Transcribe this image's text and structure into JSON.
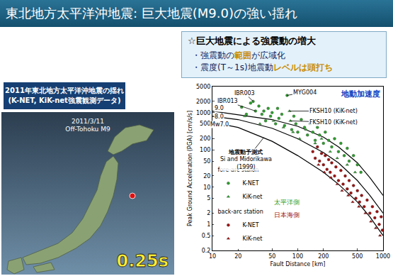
{
  "slide": {
    "title": "東北地方太平洋沖地震: 巨大地震(M9.0)の強い揺れ",
    "box": {
      "heading": "☆巨大地震による強震動の増大",
      "lines": [
        [
          {
            "text": "・強震動の"
          },
          {
            "text": "範囲",
            "highlight": true
          },
          {
            "text": "が広域化"
          }
        ],
        [
          {
            "text": "・震度(T～1s)地震動"
          },
          {
            "text": "レベルは頭打ち",
            "highlight": true
          }
        ]
      ]
    },
    "map": {
      "caption": [
        "2011年東北地方太平洋沖地震の揺れ",
        "(K-NET, KiK-net強震観測データ)"
      ],
      "date": "2011/3/11",
      "event": "Off-Tohoku M9",
      "time": "0.25s"
    }
  },
  "chart_data": {
    "type": "scatter",
    "title": "地動加速度",
    "x_label": "Fault Distance [km]",
    "y_label": "Peak Ground Acceleration (PGA) [cm/s/s]",
    "log": true,
    "grid": false,
    "legend": "lower left",
    "xlim": [
      10,
      1000
    ],
    "xticks": [
      10,
      20,
      50,
      100,
      200,
      500,
      1000
    ],
    "ylim": [
      0.2,
      5000
    ],
    "yticks": [
      0.2,
      0.5,
      1,
      2,
      5,
      10,
      20,
      50,
      100,
      200,
      500,
      1000,
      2000,
      5000
    ],
    "curves": [
      {
        "label": "9.0",
        "label_at": [
          12,
          1300
        ],
        "color": "#000000",
        "x": [
          10,
          20,
          50,
          100,
          200,
          300,
          500,
          700,
          1000
        ],
        "values": [
          1100,
          880,
          650,
          430,
          220,
          120,
          45,
          18,
          6
        ]
      },
      {
        "label": "8.0",
        "label_at": [
          12,
          780
        ],
        "color": "#000000",
        "x": [
          10,
          20,
          50,
          100,
          200,
          300,
          500,
          700,
          1000
        ],
        "values": [
          800,
          650,
          380,
          200,
          85,
          45,
          15,
          6,
          2
        ]
      },
      {
        "label": "Mw7.0",
        "label_at": [
          12,
          470
        ],
        "color": "#000000",
        "x": [
          10,
          20,
          50,
          100,
          200,
          300,
          500,
          700,
          1000
        ],
        "values": [
          550,
          400,
          170,
          70,
          25,
          12,
          4,
          1.6,
          0.5
        ]
      }
    ],
    "series": [
      {
        "name": "K-NET",
        "group": "fore-arc staion",
        "color": "#2e9e2e",
        "marker": "circle",
        "x": [
          22,
          25,
          28,
          30,
          32,
          35,
          38,
          40,
          42,
          45,
          48,
          50,
          55,
          58,
          60,
          65,
          70,
          75,
          85,
          90,
          95,
          100,
          110,
          120,
          130,
          140,
          150,
          160,
          170,
          180,
          200,
          210,
          230,
          250,
          270,
          300,
          320,
          350,
          380,
          400,
          450,
          500,
          550
        ],
        "values": [
          1400,
          900,
          1800,
          2000,
          1100,
          1500,
          900,
          1100,
          600,
          1300,
          800,
          1000,
          500,
          1300,
          700,
          900,
          450,
          2900,
          350,
          800,
          500,
          300,
          650,
          400,
          250,
          500,
          300,
          180,
          400,
          250,
          150,
          300,
          180,
          120,
          200,
          90,
          150,
          70,
          110,
          50,
          70,
          40,
          25
        ]
      },
      {
        "name": "KiK-net",
        "group": "fore-arc staion",
        "color": "#2e9e2e",
        "marker": "triangle",
        "x": [
          24,
          36,
          52,
          68,
          80,
          82,
          88,
          105,
          125,
          160,
          190,
          240,
          290,
          380,
          470
        ],
        "values": [
          800,
          500,
          600,
          400,
          1100,
          600,
          300,
          200,
          350,
          150,
          200,
          90,
          60,
          40,
          25
        ]
      },
      {
        "name": "K-NET",
        "group": "back-arc station",
        "color": "#a01010",
        "marker": "circle",
        "x": [
          150,
          160,
          170,
          180,
          190,
          200,
          210,
          220,
          230,
          240,
          250,
          270,
          280,
          300,
          320,
          340,
          360,
          380,
          400,
          420,
          450,
          480,
          500,
          530,
          560,
          600,
          650,
          700,
          750,
          800,
          850,
          900,
          950,
          980
        ],
        "values": [
          90,
          60,
          120,
          50,
          80,
          40,
          70,
          30,
          55,
          25,
          45,
          20,
          35,
          15,
          28,
          12,
          20,
          9,
          15,
          7,
          11,
          5,
          8,
          4,
          6,
          3,
          4.5,
          2,
          3,
          1.5,
          2.2,
          1,
          1.6,
          0.7
        ]
      },
      {
        "name": "KiK-net",
        "group": "back-arc station",
        "color": "#a01010",
        "marker": "triangle",
        "x": [
          175,
          205,
          245,
          290,
          330,
          390,
          440,
          520,
          620,
          720,
          820,
          920
        ],
        "values": [
          40,
          25,
          18,
          12,
          8,
          6,
          4,
          3,
          2,
          1.2,
          0.8,
          0.5
        ]
      }
    ],
    "annotations": [
      {
        "lines": [
          "IBR003"
        ],
        "x": 24,
        "y": 3300,
        "point": [
          30,
          2000
        ]
      },
      {
        "lines": [
          "MYG004"
        ],
        "x": 120,
        "y": 3500,
        "point": [
          75,
          2900
        ]
      },
      {
        "lines": [
          "IBR013"
        ],
        "x": 15,
        "y": 2000,
        "point": [
          32,
          1100
        ]
      },
      {
        "lines": [
          "FKSH10 (KiK-net)"
        ],
        "x": 260,
        "y": 1100,
        "point": [
          80,
          1100
        ]
      },
      {
        "lines": [
          "FKSH10 (KiK-net)"
        ],
        "x": 260,
        "y": 550,
        "point": [
          82,
          600
        ]
      },
      {
        "lines": [
          "地震動予測式",
          "Si and Midorikawa",
          "(1999)"
        ],
        "x": 25,
        "y": 55,
        "point": [
          40,
          215
        ]
      },
      {
        "lines": [
          "太平洋側"
        ],
        "x": 75,
        "y": 4,
        "color": "#2e9e2e"
      },
      {
        "lines": [
          "日本海側"
        ],
        "x": 75,
        "y": 1.8,
        "color": "#a01010"
      }
    ]
  }
}
